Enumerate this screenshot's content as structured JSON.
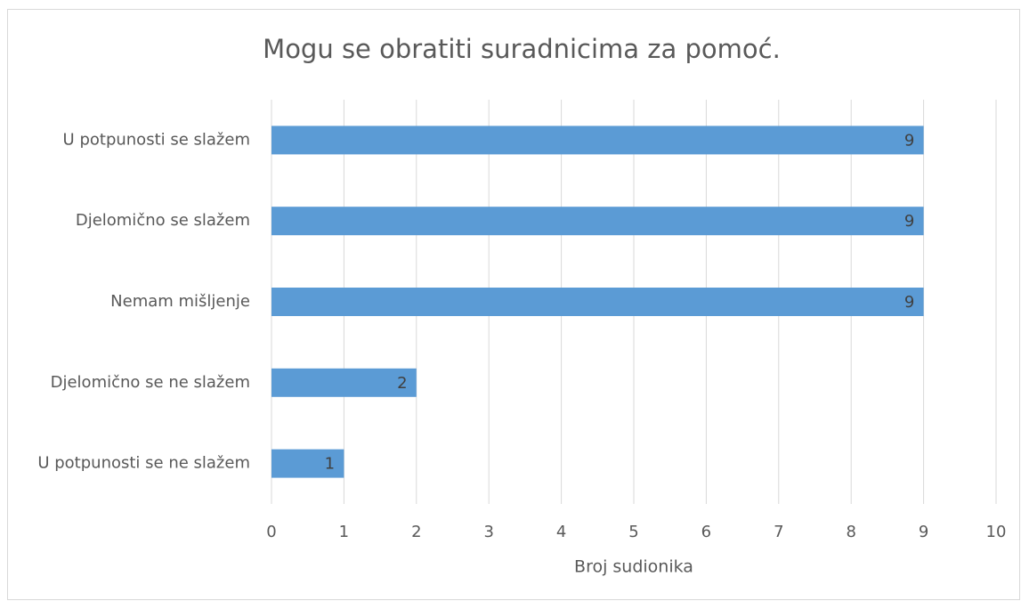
{
  "chart_data": {
    "type": "bar",
    "orientation": "horizontal",
    "title": "Mogu se obratiti suradnicima za pomoć.",
    "categories": [
      "U potpunosti se slažem",
      "Djelomično se slažem",
      "Nemam mišljenje",
      "Djelomično se ne slažem",
      "U potpunosti se ne slažem"
    ],
    "values": [
      9,
      9,
      9,
      2,
      1
    ],
    "color": "#5b9bd5",
    "xlabel": "Broj sudionika",
    "xlim": [
      0,
      10
    ],
    "xticks": [
      0,
      1,
      2,
      3,
      4,
      5,
      6,
      7,
      8,
      9,
      10
    ],
    "grid": true
  }
}
